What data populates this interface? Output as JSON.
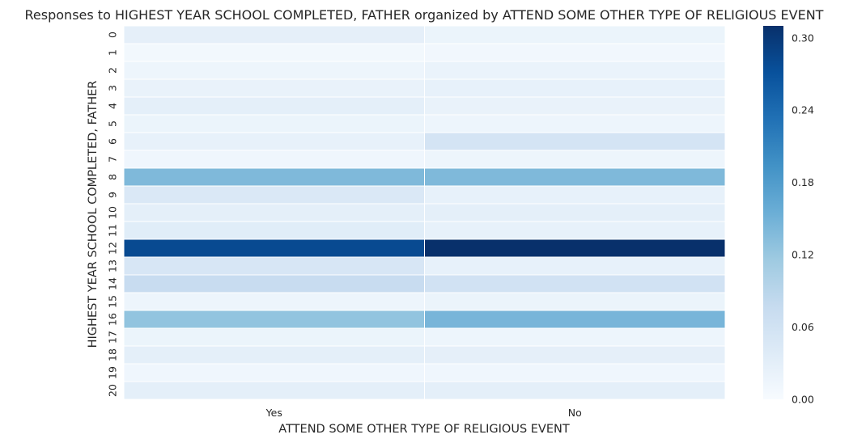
{
  "chart_data": {
    "type": "heatmap",
    "title": "Responses to HIGHEST YEAR SCHOOL COMPLETED, FATHER organized by ATTEND SOME OTHER TYPE OF RELIGIOUS EVENT",
    "xlabel": "ATTEND SOME OTHER TYPE OF RELIGIOUS EVENT",
    "ylabel": "HIGHEST YEAR SCHOOL COMPLETED, FATHER",
    "x_categories": [
      "Yes",
      "No"
    ],
    "y_categories": [
      "0",
      "1",
      "2",
      "3",
      "4",
      "5",
      "6",
      "7",
      "8",
      "9",
      "10",
      "11",
      "12",
      "13",
      "14",
      "15",
      "16",
      "17",
      "18",
      "19",
      "20"
    ],
    "values": [
      [
        0.028,
        0.018
      ],
      [
        0.008,
        0.01
      ],
      [
        0.015,
        0.02
      ],
      [
        0.022,
        0.025
      ],
      [
        0.03,
        0.022
      ],
      [
        0.018,
        0.015
      ],
      [
        0.025,
        0.055
      ],
      [
        0.012,
        0.015
      ],
      [
        0.14,
        0.14
      ],
      [
        0.045,
        0.025
      ],
      [
        0.03,
        0.03
      ],
      [
        0.035,
        0.025
      ],
      [
        0.28,
        0.31
      ],
      [
        0.05,
        0.025
      ],
      [
        0.075,
        0.06
      ],
      [
        0.015,
        0.018
      ],
      [
        0.125,
        0.145
      ],
      [
        0.018,
        0.015
      ],
      [
        0.03,
        0.028
      ],
      [
        0.012,
        0.012
      ],
      [
        0.03,
        0.03
      ]
    ],
    "colorbar": {
      "min": 0.0,
      "max": 0.31,
      "ticks": [
        "0.00",
        "0.06",
        "0.12",
        "0.18",
        "0.24",
        "0.30"
      ],
      "tick_values": [
        0.0,
        0.06,
        0.12,
        0.18,
        0.24,
        0.3
      ],
      "colormap": "Blues"
    }
  }
}
